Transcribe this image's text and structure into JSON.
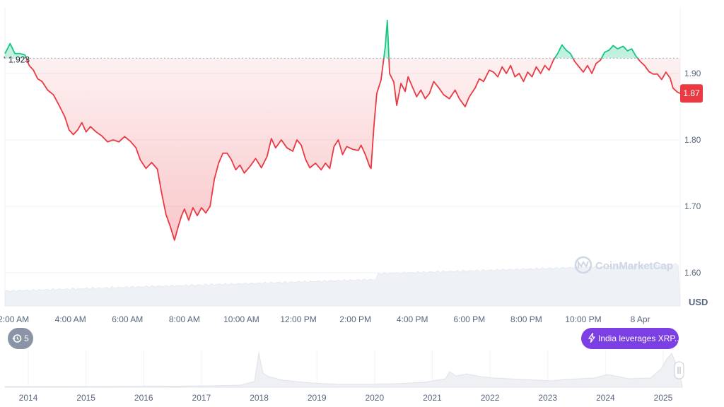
{
  "chart_data": {
    "type": "line",
    "title": "",
    "unit": "USD",
    "watermark": "CoinMarketCap",
    "reference_value": 1.923,
    "reference_label": "1.923",
    "current_value": 1.87,
    "current_label": "1.87",
    "ylim": [
      1.55,
      2.0
    ],
    "y_ticks": [
      1.6,
      1.7,
      1.8,
      1.9
    ],
    "y_tick_labels": [
      "1.60",
      "1.70",
      "1.80",
      "1.90"
    ],
    "x_ticks": [
      "2:00 AM",
      "4:00 AM",
      "6:00 AM",
      "8:00 AM",
      "10:00 AM",
      "12:00 PM",
      "2:00 PM",
      "4:00 PM",
      "6:00 PM",
      "8:00 PM",
      "10:00 PM",
      "8 Apr"
    ],
    "x_tick_hours": [
      2,
      4,
      6,
      8,
      10,
      12,
      14,
      16,
      18,
      20,
      22,
      24
    ],
    "xlim_hours": [
      1.7,
      25.4
    ],
    "grid": true,
    "colors": {
      "above": "#16c784",
      "below": "#ea3943",
      "reference": "#a1a7bb",
      "volume": "#e6e9ef"
    },
    "series": [
      {
        "points": [
          [
            1.7,
            1.93
          ],
          [
            1.88,
            1.945
          ],
          [
            2.05,
            1.93
          ],
          [
            2.22,
            1.93
          ],
          [
            2.4,
            1.928
          ],
          [
            2.55,
            1.912
          ],
          [
            2.7,
            1.905
          ],
          [
            2.85,
            1.892
          ],
          [
            3.0,
            1.888
          ],
          [
            3.2,
            1.875
          ],
          [
            3.4,
            1.868
          ],
          [
            3.6,
            1.852
          ],
          [
            3.8,
            1.835
          ],
          [
            3.95,
            1.815
          ],
          [
            4.1,
            1.808
          ],
          [
            4.25,
            1.815
          ],
          [
            4.4,
            1.826
          ],
          [
            4.55,
            1.812
          ],
          [
            4.7,
            1.82
          ],
          [
            4.9,
            1.812
          ],
          [
            5.1,
            1.806
          ],
          [
            5.3,
            1.797
          ],
          [
            5.5,
            1.8
          ],
          [
            5.7,
            1.797
          ],
          [
            5.9,
            1.805
          ],
          [
            6.1,
            1.798
          ],
          [
            6.3,
            1.788
          ],
          [
            6.45,
            1.77
          ],
          [
            6.65,
            1.757
          ],
          [
            6.85,
            1.766
          ],
          [
            7.05,
            1.756
          ],
          [
            7.2,
            1.72
          ],
          [
            7.35,
            1.688
          ],
          [
            7.5,
            1.67
          ],
          [
            7.65,
            1.649
          ],
          [
            7.8,
            1.672
          ],
          [
            7.9,
            1.686
          ],
          [
            8.0,
            1.696
          ],
          [
            8.15,
            1.679
          ],
          [
            8.3,
            1.698
          ],
          [
            8.45,
            1.686
          ],
          [
            8.6,
            1.698
          ],
          [
            8.75,
            1.69
          ],
          [
            8.9,
            1.7
          ],
          [
            9.05,
            1.741
          ],
          [
            9.2,
            1.765
          ],
          [
            9.35,
            1.78
          ],
          [
            9.5,
            1.78
          ],
          [
            9.65,
            1.77
          ],
          [
            9.8,
            1.755
          ],
          [
            9.95,
            1.762
          ],
          [
            10.1,
            1.75
          ],
          [
            10.3,
            1.76
          ],
          [
            10.5,
            1.772
          ],
          [
            10.7,
            1.758
          ],
          [
            10.9,
            1.775
          ],
          [
            11.05,
            1.802
          ],
          [
            11.2,
            1.788
          ],
          [
            11.4,
            1.8
          ],
          [
            11.6,
            1.788
          ],
          [
            11.8,
            1.783
          ],
          [
            11.95,
            1.8
          ],
          [
            12.1,
            1.792
          ],
          [
            12.25,
            1.771
          ],
          [
            12.4,
            1.758
          ],
          [
            12.6,
            1.765
          ],
          [
            12.8,
            1.755
          ],
          [
            12.95,
            1.765
          ],
          [
            13.1,
            1.757
          ],
          [
            13.25,
            1.79
          ],
          [
            13.4,
            1.8
          ],
          [
            13.55,
            1.778
          ],
          [
            13.7,
            1.79
          ],
          [
            13.9,
            1.786
          ],
          [
            14.1,
            1.784
          ],
          [
            14.2,
            1.792
          ],
          [
            14.35,
            1.778
          ],
          [
            14.5,
            1.76
          ],
          [
            14.55,
            1.757
          ],
          [
            14.65,
            1.82
          ],
          [
            14.75,
            1.87
          ],
          [
            14.9,
            1.89
          ],
          [
            15.05,
            1.94
          ],
          [
            15.12,
            1.98
          ],
          [
            15.2,
            1.9
          ],
          [
            15.35,
            1.887
          ],
          [
            15.45,
            1.852
          ],
          [
            15.6,
            1.885
          ],
          [
            15.75,
            1.873
          ],
          [
            15.85,
            1.895
          ],
          [
            16.0,
            1.88
          ],
          [
            16.15,
            1.865
          ],
          [
            16.3,
            1.875
          ],
          [
            16.45,
            1.862
          ],
          [
            16.6,
            1.87
          ],
          [
            16.75,
            1.888
          ],
          [
            16.9,
            1.88
          ],
          [
            17.1,
            1.868
          ],
          [
            17.3,
            1.862
          ],
          [
            17.5,
            1.875
          ],
          [
            17.65,
            1.862
          ],
          [
            17.85,
            1.85
          ],
          [
            18.0,
            1.865
          ],
          [
            18.2,
            1.878
          ],
          [
            18.35,
            1.892
          ],
          [
            18.5,
            1.888
          ],
          [
            18.7,
            1.905
          ],
          [
            18.85,
            1.902
          ],
          [
            19.0,
            1.895
          ],
          [
            19.15,
            1.91
          ],
          [
            19.3,
            1.9
          ],
          [
            19.45,
            1.912
          ],
          [
            19.6,
            1.895
          ],
          [
            19.75,
            1.9
          ],
          [
            19.9,
            1.888
          ],
          [
            20.05,
            1.902
          ],
          [
            20.2,
            1.895
          ],
          [
            20.35,
            1.91
          ],
          [
            20.5,
            1.9
          ],
          [
            20.65,
            1.912
          ],
          [
            20.8,
            1.905
          ],
          [
            20.95,
            1.92
          ],
          [
            21.1,
            1.93
          ],
          [
            21.25,
            1.943
          ],
          [
            21.4,
            1.935
          ],
          [
            21.55,
            1.93
          ],
          [
            21.7,
            1.918
          ],
          [
            21.85,
            1.91
          ],
          [
            22.0,
            1.902
          ],
          [
            22.15,
            1.912
          ],
          [
            22.3,
            1.9
          ],
          [
            22.45,
            1.915
          ],
          [
            22.6,
            1.92
          ],
          [
            22.75,
            1.932
          ],
          [
            22.9,
            1.935
          ],
          [
            23.05,
            1.942
          ],
          [
            23.2,
            1.937
          ],
          [
            23.4,
            1.941
          ],
          [
            23.55,
            1.934
          ],
          [
            23.7,
            1.937
          ],
          [
            23.85,
            1.926
          ],
          [
            24.0,
            1.918
          ],
          [
            24.15,
            1.912
          ],
          [
            24.3,
            1.903
          ],
          [
            24.45,
            1.899
          ],
          [
            24.6,
            1.899
          ],
          [
            24.75,
            1.891
          ],
          [
            24.9,
            1.902
          ],
          [
            25.05,
            1.893
          ],
          [
            25.15,
            1.878
          ],
          [
            25.3,
            1.872
          ],
          [
            25.4,
            1.87
          ]
        ]
      }
    ],
    "overview": {
      "x_labels": [
        "2014",
        "2015",
        "2016",
        "2017",
        "2018",
        "2019",
        "2020",
        "2021",
        "2022",
        "2023",
        "2024",
        "2025"
      ]
    }
  },
  "controls": {
    "events_count": "5",
    "news_chip": "India leverages XRP..."
  }
}
